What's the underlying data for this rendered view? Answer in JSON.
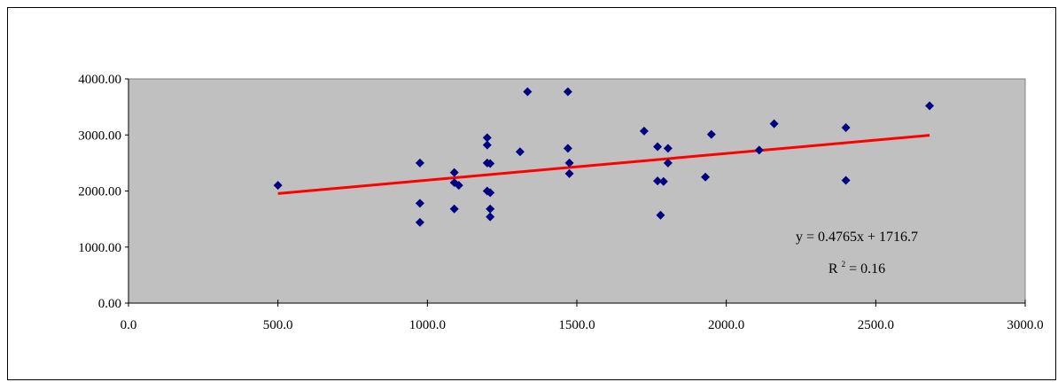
{
  "chart_data": {
    "type": "scatter",
    "title": "",
    "xlabel": "",
    "ylabel": "",
    "xlim": [
      0,
      3000
    ],
    "ylim": [
      0,
      4000
    ],
    "x_ticks": [
      "0.0",
      "500.0",
      "1000.0",
      "1500.0",
      "2000.0",
      "2500.0",
      "3000.0"
    ],
    "y_ticks": [
      "0.00",
      "1000.00",
      "2000.00",
      "3000.00",
      "4000.00"
    ],
    "grid": false,
    "colors": {
      "plot_area": "#c0c0c0",
      "points": "#000080",
      "trendline": "#ff0000"
    },
    "points": [
      {
        "x": 500,
        "y": 2100
      },
      {
        "x": 975,
        "y": 2500
      },
      {
        "x": 975,
        "y": 1780
      },
      {
        "x": 975,
        "y": 1440
      },
      {
        "x": 1090,
        "y": 2330
      },
      {
        "x": 1090,
        "y": 2150
      },
      {
        "x": 1090,
        "y": 1680
      },
      {
        "x": 1105,
        "y": 2100
      },
      {
        "x": 1200,
        "y": 2950
      },
      {
        "x": 1200,
        "y": 2820
      },
      {
        "x": 1200,
        "y": 2500
      },
      {
        "x": 1210,
        "y": 2490
      },
      {
        "x": 1200,
        "y": 2000
      },
      {
        "x": 1210,
        "y": 1970
      },
      {
        "x": 1210,
        "y": 1680
      },
      {
        "x": 1210,
        "y": 1540
      },
      {
        "x": 1310,
        "y": 2700
      },
      {
        "x": 1335,
        "y": 3770
      },
      {
        "x": 1470,
        "y": 3770
      },
      {
        "x": 1470,
        "y": 2760
      },
      {
        "x": 1475,
        "y": 2500
      },
      {
        "x": 1475,
        "y": 2310
      },
      {
        "x": 1725,
        "y": 3070
      },
      {
        "x": 1770,
        "y": 2790
      },
      {
        "x": 1770,
        "y": 2180
      },
      {
        "x": 1790,
        "y": 2170
      },
      {
        "x": 1780,
        "y": 1570
      },
      {
        "x": 1805,
        "y": 2760
      },
      {
        "x": 1805,
        "y": 2500
      },
      {
        "x": 1930,
        "y": 2250
      },
      {
        "x": 1950,
        "y": 3010
      },
      {
        "x": 2110,
        "y": 2730
      },
      {
        "x": 2160,
        "y": 3200
      },
      {
        "x": 2400,
        "y": 3130
      },
      {
        "x": 2400,
        "y": 2190
      },
      {
        "x": 2680,
        "y": 3520
      }
    ],
    "trendline": {
      "type": "linear",
      "slope": 0.4765,
      "intercept": 1716.7,
      "x_range": [
        500,
        2680
      ]
    },
    "annotations": {
      "equation": "y = 0.4765x + 1716.7",
      "r_squared_prefix": "R",
      "r_squared_sup": "2",
      "r_squared_suffix": " = 0.16"
    }
  }
}
